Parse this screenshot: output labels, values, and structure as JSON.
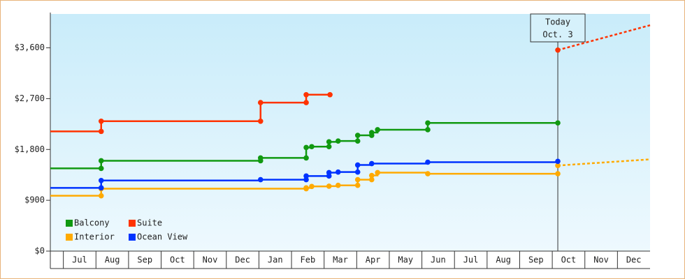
{
  "chart_data": {
    "type": "step-line",
    "xlim": [
      0.6,
      19
    ],
    "ylim": [
      0,
      4200
    ],
    "yticks": [
      {
        "value": 0,
        "label": "$0"
      },
      {
        "value": 900,
        "label": "$900"
      },
      {
        "value": 1800,
        "label": "$1,800"
      },
      {
        "value": 2700,
        "label": "$2,700"
      },
      {
        "value": 3600,
        "label": "$3,600"
      }
    ],
    "xticks": [
      {
        "value": 1.5,
        "label": "Jul"
      },
      {
        "value": 2.5,
        "label": "Aug"
      },
      {
        "value": 3.5,
        "label": "Sep"
      },
      {
        "value": 4.5,
        "label": "Oct"
      },
      {
        "value": 5.5,
        "label": "Nov"
      },
      {
        "value": 6.5,
        "label": "Dec"
      },
      {
        "value": 7.5,
        "label": "Jan"
      },
      {
        "value": 8.5,
        "label": "Feb"
      },
      {
        "value": 9.5,
        "label": "Mar"
      },
      {
        "value": 10.5,
        "label": "Apr"
      },
      {
        "value": 11.5,
        "label": "May"
      },
      {
        "value": 12.5,
        "label": "Jun"
      },
      {
        "value": 13.5,
        "label": "Jul"
      },
      {
        "value": 14.5,
        "label": "Aug"
      },
      {
        "value": 15.5,
        "label": "Sep"
      },
      {
        "value": 16.5,
        "label": "Oct"
      },
      {
        "value": 17.5,
        "label": "Nov"
      },
      {
        "value": 18.5,
        "label": "Dec"
      }
    ],
    "annotation": {
      "x": 16.17,
      "lines": [
        "Today",
        "Oct. 3"
      ]
    },
    "series": [
      {
        "name": "Balcony",
        "color": "#119911",
        "x": [
          0.6,
          2.16,
          2.16,
          7.05,
          7.05,
          8.45,
          8.45,
          8.62,
          9.15,
          9.15,
          9.43,
          10.03,
          10.03,
          10.46,
          10.46,
          10.64,
          12.18,
          12.18,
          16.17
        ],
        "values": [
          1465,
          1465,
          1600,
          1600,
          1650,
          1650,
          1835,
          1850,
          1850,
          1935,
          1950,
          1950,
          2050,
          2050,
          2100,
          2150,
          2150,
          2270,
          2270
        ]
      },
      {
        "name": "Suite",
        "color": "#ff3300",
        "x": [
          0.6,
          2.16,
          2.16,
          7.05,
          7.05,
          8.45,
          8.45,
          9.18,
          null,
          16.17
        ],
        "values": [
          2120,
          2120,
          2300,
          2300,
          2630,
          2630,
          2770,
          2770,
          null,
          3560
        ],
        "projection": {
          "x": [
            16.17,
            19
          ],
          "values": [
            3560,
            4000
          ]
        }
      },
      {
        "name": "Interior",
        "color": "#ffaa00",
        "x": [
          0.6,
          2.16,
          2.16,
          8.45,
          8.45,
          8.62,
          9.15,
          9.43,
          10.03,
          10.03,
          10.46,
          10.46,
          10.64,
          12.18,
          16.17,
          null,
          16.17
        ],
        "values": [
          980,
          980,
          1105,
          1105,
          1120,
          1145,
          1150,
          1165,
          1165,
          1265,
          1265,
          1340,
          1390,
          1370,
          1370,
          null,
          1515
        ],
        "projection": {
          "x": [
            16.17,
            19
          ],
          "values": [
            1515,
            1625
          ]
        }
      },
      {
        "name": "Ocean View",
        "color": "#0033ff",
        "x": [
          0.6,
          2.16,
          2.16,
          7.05,
          8.45,
          8.45,
          9.15,
          9.15,
          9.43,
          10.03,
          10.03,
          10.46,
          12.18,
          16.17
        ],
        "values": [
          1120,
          1120,
          1250,
          1265,
          1265,
          1330,
          1330,
          1390,
          1400,
          1400,
          1525,
          1550,
          1575,
          1590
        ]
      }
    ]
  }
}
